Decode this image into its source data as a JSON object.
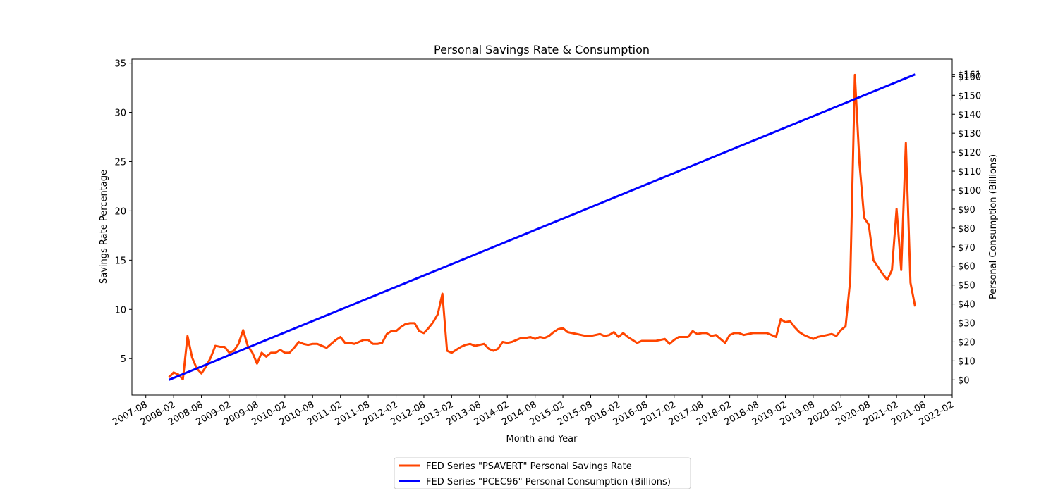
{
  "chart_data": {
    "type": "line",
    "title": "Personal Savings Rate & Consumption",
    "x_label": "Month and Year",
    "y_label": "Savings Rate Percentage",
    "y2_label": "Personal Consumption (Billions)",
    "x": [
      "2008-01",
      "2008-02",
      "2008-03",
      "2008-04",
      "2008-05",
      "2008-06",
      "2008-07",
      "2008-08",
      "2008-09",
      "2008-10",
      "2008-11",
      "2008-12",
      "2009-01",
      "2009-02",
      "2009-03",
      "2009-04",
      "2009-05",
      "2009-06",
      "2009-07",
      "2009-08",
      "2009-09",
      "2009-10",
      "2009-11",
      "2009-12",
      "2010-01",
      "2010-02",
      "2010-03",
      "2010-04",
      "2010-05",
      "2010-06",
      "2010-07",
      "2010-08",
      "2010-09",
      "2010-10",
      "2010-11",
      "2010-12",
      "2011-01",
      "2011-02",
      "2011-03",
      "2011-04",
      "2011-05",
      "2011-06",
      "2011-07",
      "2011-08",
      "2011-09",
      "2011-10",
      "2011-11",
      "2011-12",
      "2012-01",
      "2012-02",
      "2012-03",
      "2012-04",
      "2012-05",
      "2012-06",
      "2012-07",
      "2012-08",
      "2012-09",
      "2012-10",
      "2012-11",
      "2012-12",
      "2013-01",
      "2013-02",
      "2013-03",
      "2013-04",
      "2013-05",
      "2013-06",
      "2013-07",
      "2013-08",
      "2013-09",
      "2013-10",
      "2013-11",
      "2013-12",
      "2014-01",
      "2014-02",
      "2014-03",
      "2014-04",
      "2014-05",
      "2014-06",
      "2014-07",
      "2014-08",
      "2014-09",
      "2014-10",
      "2014-11",
      "2014-12",
      "2015-01",
      "2015-02",
      "2015-03",
      "2015-04",
      "2015-05",
      "2015-06",
      "2015-07",
      "2015-08",
      "2015-09",
      "2015-10",
      "2015-11",
      "2015-12",
      "2016-01",
      "2016-02",
      "2016-03",
      "2016-04",
      "2016-05",
      "2016-06",
      "2016-07",
      "2016-08",
      "2016-09",
      "2016-10",
      "2016-11",
      "2016-12",
      "2017-01",
      "2017-02",
      "2017-03",
      "2017-04",
      "2017-05",
      "2017-06",
      "2017-07",
      "2017-08",
      "2017-09",
      "2017-10",
      "2017-11",
      "2017-12",
      "2018-01",
      "2018-02",
      "2018-03",
      "2018-04",
      "2018-05",
      "2018-06",
      "2018-07",
      "2018-08",
      "2018-09",
      "2018-10",
      "2018-11",
      "2018-12",
      "2019-01",
      "2019-02",
      "2019-03",
      "2019-04",
      "2019-05",
      "2019-06",
      "2019-07",
      "2019-08",
      "2019-09",
      "2019-10",
      "2019-11",
      "2019-12",
      "2020-01",
      "2020-02",
      "2020-03",
      "2020-04",
      "2020-05",
      "2020-06",
      "2020-07",
      "2020-08",
      "2020-09",
      "2020-10",
      "2020-11",
      "2020-12",
      "2021-01",
      "2021-02",
      "2021-03",
      "2021-04",
      "2021-05",
      "2021-06"
    ],
    "series": [
      {
        "name": "FED Series \"PSAVERT\" Personal Savings Rate",
        "color": "#ff4500",
        "values": [
          3.1,
          3.6,
          3.4,
          2.9,
          7.3,
          5.1,
          4.0,
          3.5,
          4.2,
          5.1,
          6.3,
          6.2,
          6.2,
          5.6,
          5.8,
          6.5,
          7.9,
          6.3,
          5.6,
          4.5,
          5.6,
          5.2,
          5.6,
          5.6,
          5.9,
          5.6,
          5.6,
          6.1,
          6.7,
          6.5,
          6.4,
          6.5,
          6.5,
          6.3,
          6.1,
          6.5,
          6.9,
          7.2,
          6.6,
          6.6,
          6.5,
          6.7,
          6.9,
          6.9,
          6.5,
          6.5,
          6.6,
          7.5,
          7.8,
          7.8,
          8.2,
          8.5,
          8.6,
          8.6,
          7.8,
          7.6,
          8.1,
          8.7,
          9.5,
          11.6,
          5.8,
          5.6,
          5.9,
          6.2,
          6.4,
          6.5,
          6.3,
          6.4,
          6.5,
          6.0,
          5.8,
          6.0,
          6.7,
          6.6,
          6.7,
          6.9,
          7.1,
          7.1,
          7.2,
          7.0,
          7.2,
          7.1,
          7.3,
          7.7,
          8.0,
          8.1,
          7.7,
          7.6,
          7.5,
          7.4,
          7.3,
          7.3,
          7.4,
          7.5,
          7.3,
          7.4,
          7.7,
          7.2,
          7.6,
          7.2,
          6.9,
          6.6,
          6.8,
          6.8,
          6.8,
          6.8,
          6.9,
          7.0,
          6.5,
          6.9,
          7.2,
          7.2,
          7.2,
          7.8,
          7.5,
          7.6,
          7.6,
          7.3,
          7.4,
          7.0,
          6.6,
          7.4,
          7.6,
          7.6,
          7.4,
          7.5,
          7.6,
          7.6,
          7.6,
          7.6,
          7.4,
          7.2,
          9.0,
          8.7,
          8.8,
          8.2,
          7.7,
          7.4,
          7.2,
          7.0,
          7.2,
          7.3,
          7.4,
          7.5,
          7.3,
          7.9,
          8.3,
          13.0,
          33.8,
          24.8,
          19.3,
          18.6,
          15.0,
          14.3,
          13.6,
          13.0,
          14.0,
          20.2,
          14.0,
          26.9,
          12.7,
          10.3
        ]
      },
      {
        "name": "FED Series \"PCEC96\" Personal Consumption (Billions)",
        "color": "#0000ff",
        "axis": "y2",
        "values": [
          0,
          1,
          2,
          3,
          4,
          5,
          6,
          7,
          8,
          9,
          10,
          11,
          12,
          13,
          14,
          15,
          16,
          17,
          18,
          19,
          20,
          21,
          22,
          23,
          24,
          25,
          26,
          27,
          28,
          29,
          30,
          31,
          32,
          33,
          34,
          35,
          36,
          37,
          38,
          39,
          40,
          41,
          42,
          43,
          44,
          45,
          46,
          47,
          48,
          49,
          50,
          51,
          52,
          53,
          54,
          55,
          56,
          57,
          58,
          59,
          60,
          61,
          62,
          63,
          64,
          65,
          66,
          67,
          68,
          69,
          70,
          71,
          72,
          73,
          74,
          75,
          76,
          77,
          78,
          79,
          80,
          81,
          82,
          83,
          84,
          85,
          86,
          87,
          88,
          89,
          90,
          91,
          92,
          93,
          94,
          95,
          96,
          97,
          98,
          99,
          100,
          101,
          102,
          103,
          104,
          105,
          106,
          107,
          108,
          109,
          110,
          111,
          112,
          113,
          114,
          115,
          116,
          117,
          118,
          119,
          120,
          121,
          122,
          123,
          124,
          125,
          126,
          127,
          128,
          129,
          130,
          131,
          132,
          133,
          134,
          135,
          136,
          137,
          138,
          139,
          140,
          141,
          142,
          143,
          144,
          145,
          146,
          147,
          148,
          149,
          150,
          151,
          152,
          153,
          154,
          155,
          156,
          157,
          158,
          159,
          160,
          161
        ]
      }
    ],
    "xlim": [
      "2007-05",
      "2022-02"
    ],
    "xticks": [
      "2007-08",
      "2008-02",
      "2008-08",
      "2009-02",
      "2009-08",
      "2010-02",
      "2010-08",
      "2011-02",
      "2011-08",
      "2012-02",
      "2012-08",
      "2013-02",
      "2013-08",
      "2014-02",
      "2014-08",
      "2015-02",
      "2015-08",
      "2016-02",
      "2016-08",
      "2017-02",
      "2017-08",
      "2018-02",
      "2018-08",
      "2019-02",
      "2019-08",
      "2020-02",
      "2020-08",
      "2021-02",
      "2021-08",
      "2022-02"
    ],
    "ylim": [
      1.3,
      35.4
    ],
    "yticks": [
      5,
      10,
      15,
      20,
      25,
      30,
      35
    ],
    "y2lim": [
      -8.05,
      169.05
    ],
    "y2ticks": [
      {
        "value": 0,
        "label": "$0"
      },
      {
        "value": 10,
        "label": "$10"
      },
      {
        "value": 20,
        "label": "$20"
      },
      {
        "value": 30,
        "label": "$30"
      },
      {
        "value": 40,
        "label": "$40"
      },
      {
        "value": 50,
        "label": "$50"
      },
      {
        "value": 60,
        "label": "$60"
      },
      {
        "value": 70,
        "label": "$70"
      },
      {
        "value": 80,
        "label": "$80"
      },
      {
        "value": 90,
        "label": "$90"
      },
      {
        "value": 100,
        "label": "$100"
      },
      {
        "value": 110,
        "label": "$110"
      },
      {
        "value": 120,
        "label": "$120"
      },
      {
        "value": 130,
        "label": "$130"
      },
      {
        "value": 140,
        "label": "$140"
      },
      {
        "value": 150,
        "label": "$150"
      },
      {
        "value": 160,
        "label": "$160"
      },
      {
        "value": 161,
        "label": "$161"
      }
    ],
    "grid": false,
    "legend": "below"
  }
}
